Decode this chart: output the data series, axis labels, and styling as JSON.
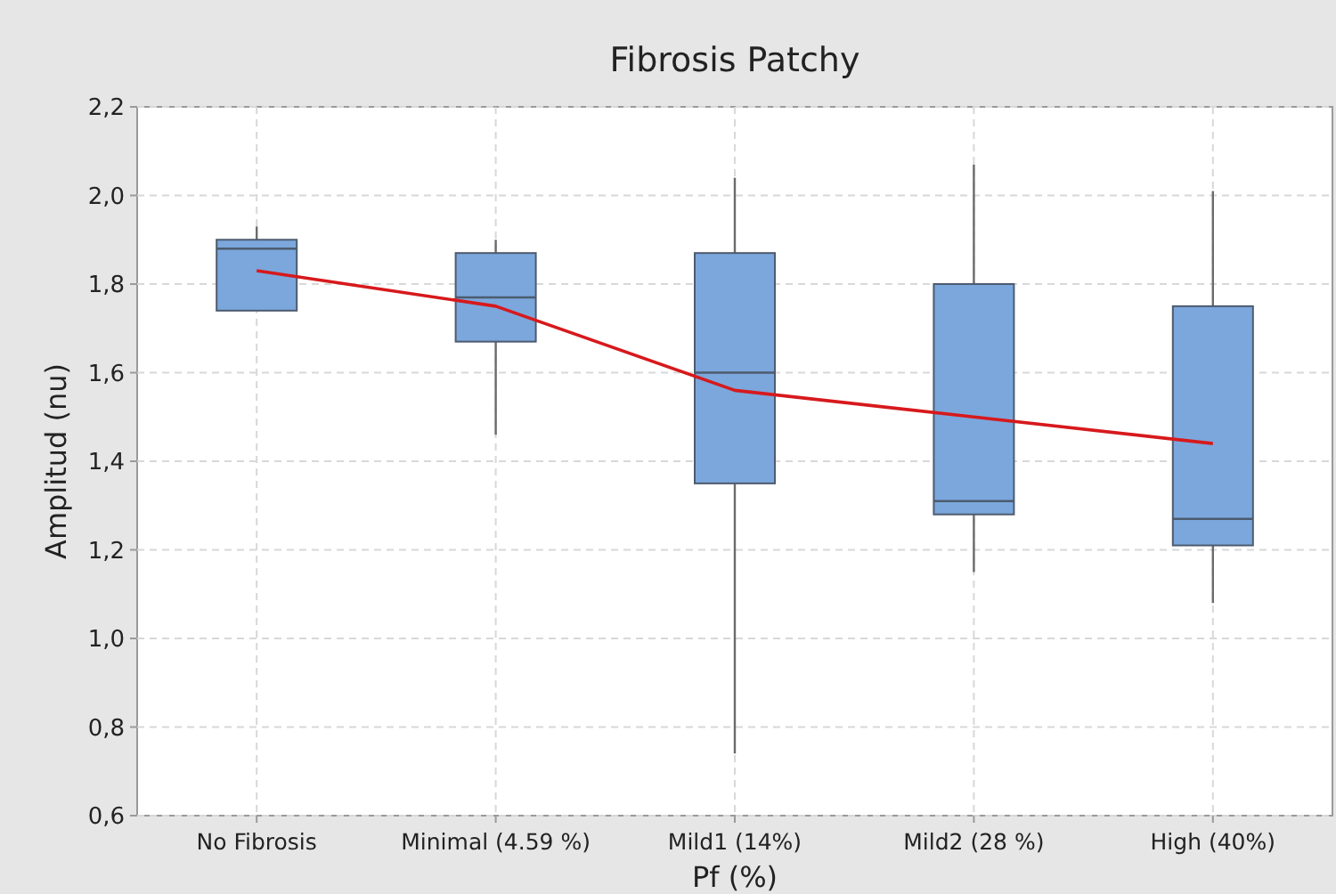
{
  "chart_data": {
    "type": "box",
    "title": "Fibrosis Patchy",
    "xlabel": "Pf (%)",
    "ylabel": "Amplitud (nu)",
    "categories": [
      "No Fibrosis",
      "Minimal (4.59 %)",
      "Mild1 (14%)",
      "Mild2 (28 %)",
      "High (40%)"
    ],
    "ylim": [
      0.6,
      2.2
    ],
    "yticks": [
      {
        "value": 0.6,
        "label": "0,6"
      },
      {
        "value": 0.8,
        "label": "0,8"
      },
      {
        "value": 1.0,
        "label": "1,0"
      },
      {
        "value": 1.2,
        "label": "1,2"
      },
      {
        "value": 1.4,
        "label": "1,4"
      },
      {
        "value": 1.6,
        "label": "1,6"
      },
      {
        "value": 1.8,
        "label": "1,8"
      },
      {
        "value": 2.0,
        "label": "2,0"
      },
      {
        "value": 2.2,
        "label": "2,2"
      }
    ],
    "grid": true,
    "series": [
      {
        "color": "#7ba7dc",
        "boxes": [
          {
            "low": 1.74,
            "q1": 1.74,
            "median": 1.88,
            "q3": 1.9,
            "high": 1.93
          },
          {
            "low": 1.46,
            "q1": 1.67,
            "median": 1.77,
            "q3": 1.87,
            "high": 1.9
          },
          {
            "low": 0.74,
            "q1": 1.35,
            "median": 1.6,
            "q3": 1.87,
            "high": 2.04
          },
          {
            "low": 1.15,
            "q1": 1.28,
            "median": 1.31,
            "q3": 1.8,
            "high": 2.07
          },
          {
            "low": 1.08,
            "q1": 1.21,
            "median": 1.27,
            "q3": 1.75,
            "high": 2.01
          }
        ]
      },
      {
        "type": "line",
        "color": "#d7191c",
        "values": [
          1.83,
          1.75,
          1.56,
          1.5,
          1.44
        ]
      }
    ]
  }
}
